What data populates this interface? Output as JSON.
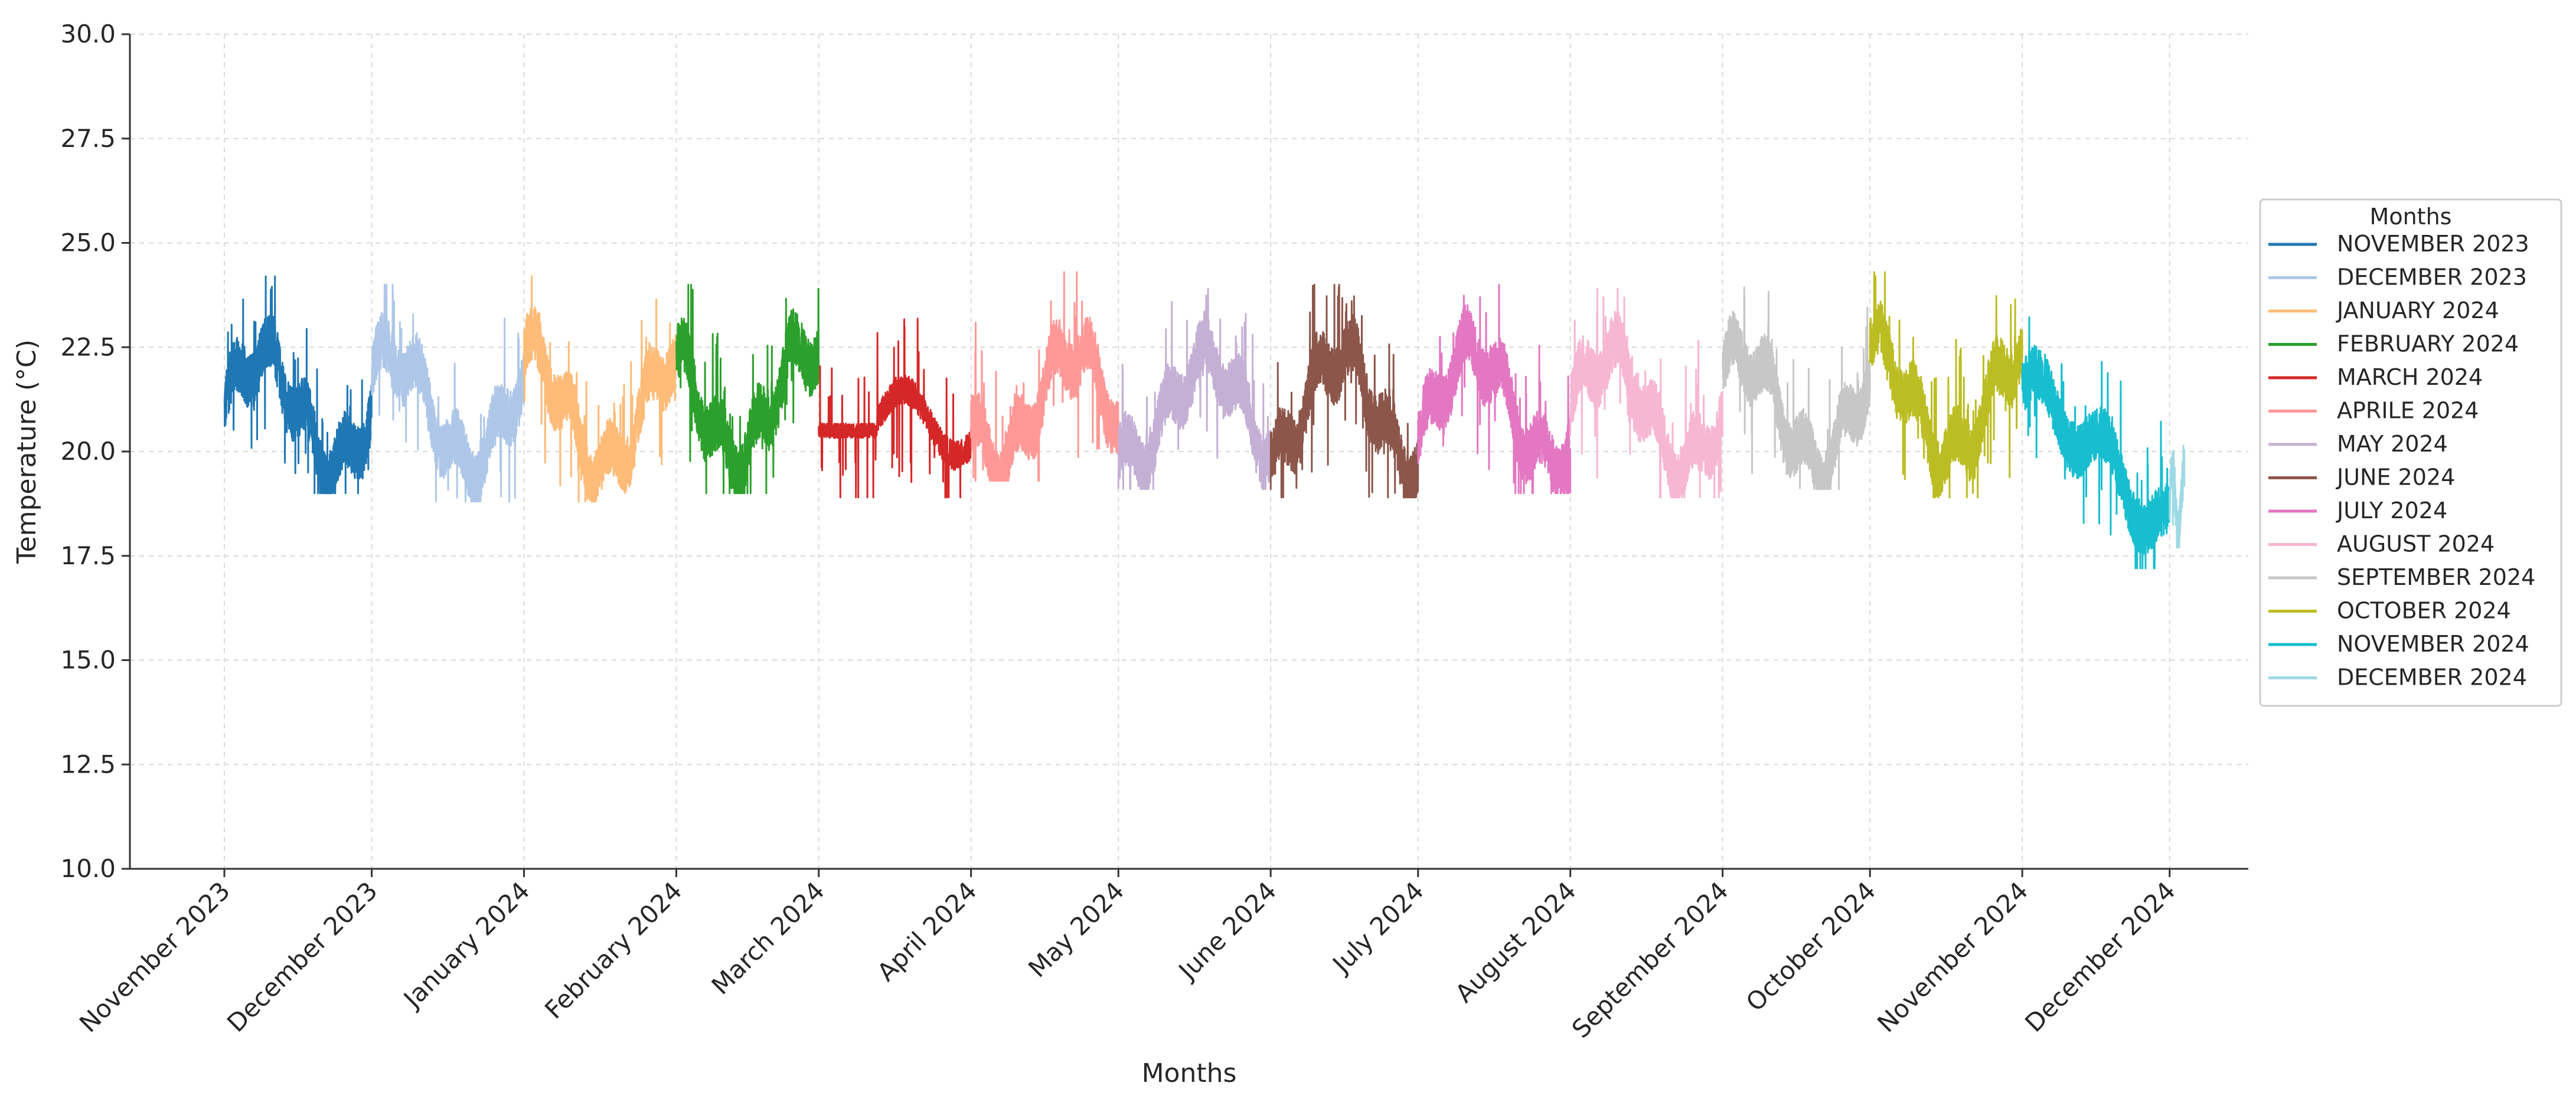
{
  "chart_data": {
    "type": "line",
    "title": "",
    "xlabel": "Months",
    "ylabel": "Temperature (°C)",
    "ylim": [
      10.0,
      30.0
    ],
    "yticks": [
      "10.0",
      "12.5",
      "15.0",
      "17.5",
      "20.0",
      "22.5",
      "25.0",
      "27.5",
      "30.0"
    ],
    "xticks": [
      "November 2023",
      "December 2023",
      "January 2024",
      "February 2024",
      "March 2024",
      "April 2024",
      "May 2024",
      "June 2024",
      "July 2024",
      "August 2024",
      "September 2024",
      "October 2024",
      "November 2024",
      "December 2024"
    ],
    "grid": true,
    "legend": {
      "title": "Months",
      "placement": "right"
    },
    "series": [
      {
        "name": "NOVEMBER 2023",
        "color": "#1f77b4",
        "start_day": 0,
        "end_day": 30,
        "min": 19.0,
        "max": 24.2,
        "base": 21.0,
        "amp": 1.3,
        "noise": 0.9,
        "pattern": "wave"
      },
      {
        "name": "DECEMBER 2023",
        "color": "#aec7e8",
        "start_day": 30,
        "end_day": 61,
        "min": 18.8,
        "max": 24.0,
        "base": 21.0,
        "amp": 1.3,
        "noise": 0.9,
        "pattern": "wave"
      },
      {
        "name": "JANUARY 2024",
        "color": "#ffbb78",
        "start_day": 61,
        "end_day": 92,
        "min": 18.8,
        "max": 24.2,
        "base": 21.0,
        "amp": 1.4,
        "noise": 0.9,
        "pattern": "wave"
      },
      {
        "name": "FEBRUARY 2024",
        "color": "#2ca02c",
        "start_day": 92,
        "end_day": 121,
        "min": 19.0,
        "max": 24.0,
        "base": 21.2,
        "amp": 1.3,
        "noise": 0.9,
        "pattern": "wave"
      },
      {
        "name": "MARCH 2024",
        "color": "#d62728",
        "start_day": 121,
        "end_day": 152,
        "min": 18.9,
        "max": 23.2,
        "base": 20.5,
        "amp": 0.5,
        "noise": 0.5,
        "pattern": "flat-then-wave"
      },
      {
        "name": "APRILE 2024",
        "color": "#ff9896",
        "start_day": 152,
        "end_day": 182,
        "min": 19.3,
        "max": 24.3,
        "base": 21.1,
        "amp": 1.3,
        "noise": 0.9,
        "pattern": "wave"
      },
      {
        "name": "MAY 2024",
        "color": "#c5b0d5",
        "start_day": 182,
        "end_day": 213,
        "min": 19.1,
        "max": 23.9,
        "base": 21.0,
        "amp": 1.2,
        "noise": 0.9,
        "pattern": "wave"
      },
      {
        "name": "JUNE 2024",
        "color": "#8c564b",
        "start_day": 213,
        "end_day": 243,
        "min": 18.9,
        "max": 24.0,
        "base": 21.0,
        "amp": 1.3,
        "noise": 0.9,
        "pattern": "wave"
      },
      {
        "name": "JULY 2024",
        "color": "#e377c2",
        "start_day": 243,
        "end_day": 274,
        "min": 19.0,
        "max": 24.0,
        "base": 21.1,
        "amp": 1.3,
        "noise": 0.9,
        "pattern": "wave"
      },
      {
        "name": "AUGUST 2024",
        "color": "#f7b6d2",
        "start_day": 274,
        "end_day": 305,
        "min": 18.9,
        "max": 23.9,
        "base": 21.0,
        "amp": 1.3,
        "noise": 0.9,
        "pattern": "wave"
      },
      {
        "name": "SEPTEMBER 2024",
        "color": "#c7c7c7",
        "start_day": 305,
        "end_day": 335,
        "min": 19.1,
        "max": 24.2,
        "base": 21.0,
        "amp": 1.3,
        "noise": 0.9,
        "pattern": "wave"
      },
      {
        "name": "OCTOBER 2024",
        "color": "#bcbd22",
        "start_day": 335,
        "end_day": 366,
        "min": 18.9,
        "max": 24.3,
        "base": 21.2,
        "amp": 1.3,
        "noise": 0.9,
        "pattern": "wave"
      },
      {
        "name": "NOVEMBER 2024",
        "color": "#17becf",
        "start_day": 366,
        "end_day": 396,
        "min": 17.2,
        "max": 23.5,
        "base": 20.3,
        "amp": 1.2,
        "noise": 0.8,
        "pattern": "decline"
      },
      {
        "name": "DECEMBER 2024",
        "color": "#9edae5",
        "start_day": 396,
        "end_day": 399,
        "min": 17.7,
        "max": 21.2,
        "base": 18.8,
        "amp": 0.4,
        "noise": 0.6,
        "pattern": "short"
      }
    ]
  }
}
